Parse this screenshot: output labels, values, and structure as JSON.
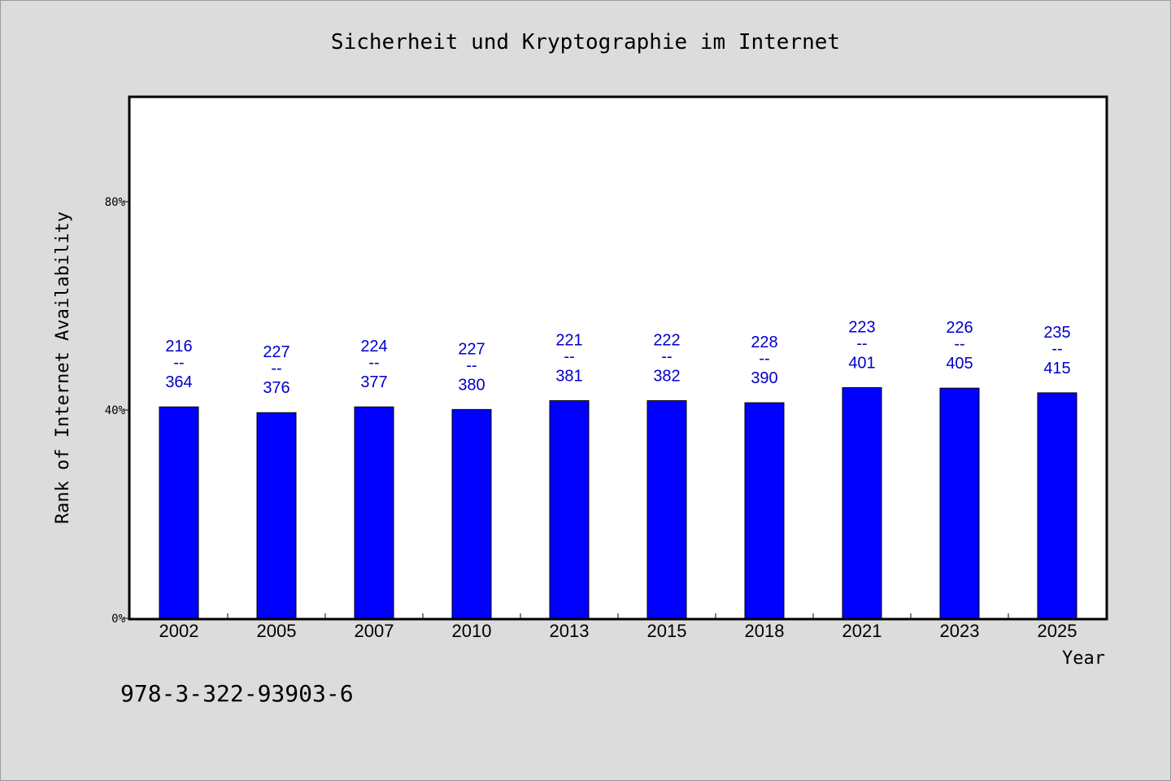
{
  "chart_data": {
    "type": "bar",
    "title": "Sicherheit und Kryptographie im Internet",
    "xlabel": "Year",
    "ylabel": "Rank of Internet Availability",
    "categories": [
      "2002",
      "2005",
      "2007",
      "2010",
      "2013",
      "2015",
      "2018",
      "2021",
      "2023",
      "2025"
    ],
    "values": [
      40.6,
      39.5,
      40.6,
      40.1,
      41.8,
      41.8,
      41.4,
      44.3,
      44.2,
      43.3
    ],
    "value_unit": "%",
    "label_top": [
      "216",
      "227",
      "224",
      "227",
      "221",
      "222",
      "228",
      "223",
      "226",
      "235"
    ],
    "label_sep": "--",
    "label_bottom": [
      "364",
      "376",
      "377",
      "380",
      "381",
      "382",
      "390",
      "401",
      "405",
      "415"
    ],
    "ylim": [
      0,
      100
    ],
    "yticks": [
      0,
      40,
      80
    ],
    "ytick_labels": [
      "0%",
      "40%",
      "80%"
    ],
    "grid": false,
    "bar_color": "#0000ff",
    "label_color": "#0000c8",
    "background_color": "#dcdcdc",
    "plot_background": "#ffffff"
  },
  "footnote": "978-3-322-93903-6"
}
